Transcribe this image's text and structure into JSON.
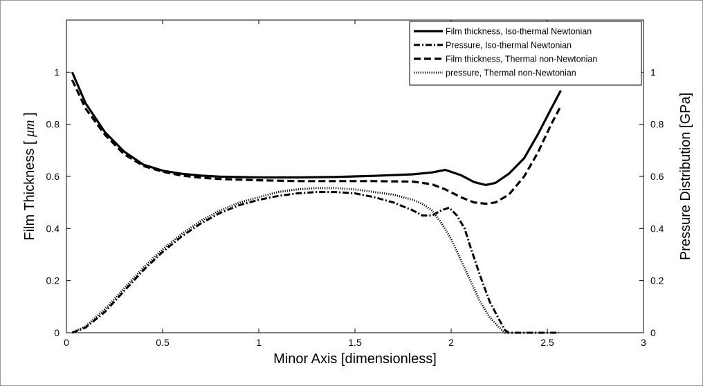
{
  "chart_data": {
    "type": "line",
    "title": "",
    "xlabel": "Minor Axis [dimensionless]",
    "ylabel_left_prefix": "Film Thickness [ ",
    "ylabel_left_unit": "μm",
    "ylabel_left_suffix": " ]",
    "ylabel_right": "Pressure Distribution [GPa]",
    "xlim": [
      0,
      3
    ],
    "ylim": [
      0,
      1.2
    ],
    "x_ticks": [
      "0",
      "0.5",
      "1",
      "1.5",
      "2",
      "2.5",
      "3"
    ],
    "y_ticks": [
      "0",
      "0.2",
      "0.4",
      "0.6",
      "0.8",
      "1"
    ],
    "grid": false,
    "legend_position": "top-right",
    "series": [
      {
        "name": "Film thickness, Iso-thermal Newtonian",
        "style": "solid",
        "x": [
          0.03,
          0.1,
          0.2,
          0.3,
          0.4,
          0.5,
          0.6,
          0.7,
          0.8,
          1.0,
          1.2,
          1.4,
          1.6,
          1.8,
          1.9,
          1.97,
          2.05,
          2.12,
          2.18,
          2.23,
          2.3,
          2.38,
          2.45,
          2.52,
          2.57
        ],
        "y": [
          1.0,
          0.88,
          0.77,
          0.695,
          0.645,
          0.622,
          0.61,
          0.603,
          0.599,
          0.596,
          0.596,
          0.598,
          0.602,
          0.608,
          0.615,
          0.625,
          0.605,
          0.578,
          0.567,
          0.575,
          0.61,
          0.67,
          0.76,
          0.86,
          0.93
        ]
      },
      {
        "name": "Pressure, Iso-thermal Newtonian",
        "style": "dash-dot",
        "x": [
          0.03,
          0.1,
          0.2,
          0.3,
          0.4,
          0.5,
          0.6,
          0.7,
          0.8,
          0.9,
          1.0,
          1.1,
          1.2,
          1.3,
          1.4,
          1.5,
          1.6,
          1.7,
          1.8,
          1.85,
          1.9,
          1.95,
          1.99,
          2.03,
          2.07,
          2.1,
          2.15,
          2.2,
          2.25,
          2.28,
          2.3,
          2.4,
          2.5,
          2.56
        ],
        "y": [
          0.0,
          0.02,
          0.08,
          0.16,
          0.24,
          0.31,
          0.37,
          0.42,
          0.46,
          0.49,
          0.51,
          0.525,
          0.535,
          0.54,
          0.54,
          0.535,
          0.52,
          0.5,
          0.47,
          0.45,
          0.45,
          0.47,
          0.48,
          0.45,
          0.4,
          0.33,
          0.22,
          0.12,
          0.05,
          0.01,
          0.0,
          0.0,
          0.0,
          0.0
        ]
      },
      {
        "name": "Film thickness, Thermal non-Newtonian",
        "style": "dashed",
        "x": [
          0.03,
          0.1,
          0.2,
          0.3,
          0.4,
          0.5,
          0.6,
          0.7,
          0.8,
          1.0,
          1.2,
          1.4,
          1.6,
          1.8,
          1.9,
          1.97,
          2.05,
          2.12,
          2.18,
          2.23,
          2.3,
          2.38,
          2.45,
          2.52,
          2.57
        ],
        "y": [
          0.97,
          0.86,
          0.76,
          0.685,
          0.64,
          0.618,
          0.603,
          0.595,
          0.59,
          0.585,
          0.582,
          0.582,
          0.582,
          0.58,
          0.57,
          0.55,
          0.52,
          0.5,
          0.495,
          0.5,
          0.53,
          0.6,
          0.69,
          0.8,
          0.87
        ]
      },
      {
        "name": "pressure, Thermal non-Newtonian",
        "style": "dotted",
        "x": [
          0.03,
          0.1,
          0.2,
          0.3,
          0.4,
          0.5,
          0.6,
          0.7,
          0.8,
          0.9,
          1.0,
          1.1,
          1.2,
          1.3,
          1.4,
          1.5,
          1.6,
          1.7,
          1.8,
          1.85,
          1.9,
          1.95,
          2.0,
          2.05,
          2.1,
          2.15,
          2.2,
          2.25,
          2.28,
          2.3
        ],
        "y": [
          0.0,
          0.025,
          0.09,
          0.17,
          0.25,
          0.32,
          0.38,
          0.43,
          0.47,
          0.5,
          0.52,
          0.54,
          0.55,
          0.555,
          0.555,
          0.55,
          0.54,
          0.53,
          0.51,
          0.495,
          0.47,
          0.42,
          0.36,
          0.28,
          0.2,
          0.12,
          0.06,
          0.02,
          0.0,
          0.0
        ]
      }
    ]
  }
}
